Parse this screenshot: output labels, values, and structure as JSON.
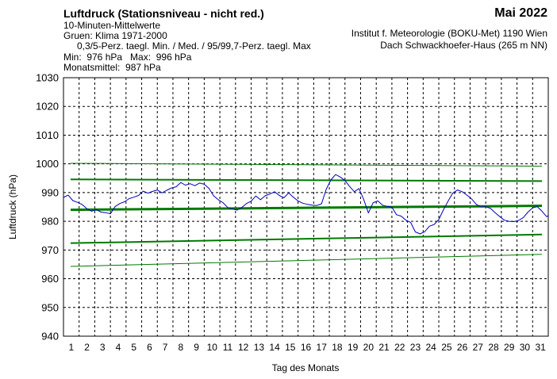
{
  "header": {
    "title": "Luftdruck (Stationsniveau - nicht red.)",
    "subtitle": "10-Minuten-Mittelwerte",
    "clim_line": "Gruen: Klima 1971-2000",
    "perc_line": "0,3/5-Perz. taegl. Min. / Med. / 95/99,7-Perz. taegl. Max",
    "stats_line": "Min:  976 hPa   Max:  996 hPa",
    "mean_line": "Monatsmittel:  987 hPa",
    "month": "Mai 2022",
    "institute": "Institut f. Meteorologie (BOKU-Met) 1190 Wien",
    "location": "Dach Schwackhoefer-Haus (265 m NN)"
  },
  "chart_data": {
    "type": "line",
    "ylabel": "Luftdruck (hPa)",
    "xlabel": "Tag des Monats",
    "ylim": [
      940,
      1030
    ],
    "xlim": [
      1,
      32
    ],
    "yticks": [
      940,
      950,
      960,
      970,
      980,
      990,
      1000,
      1010,
      1020,
      1030
    ],
    "xticks": [
      1,
      2,
      3,
      4,
      5,
      6,
      7,
      8,
      9,
      10,
      11,
      12,
      13,
      14,
      15,
      16,
      17,
      18,
      19,
      20,
      21,
      22,
      23,
      24,
      25,
      26,
      27,
      28,
      29,
      30,
      31
    ],
    "grid": true,
    "colors": {
      "measured": "#0000c0",
      "climate": "#007a00",
      "axes": "#000000"
    },
    "climate_series": [
      {
        "role": "p0.3-min",
        "x": [
          1,
          32
        ],
        "y": [
          964.3,
          968.5
        ],
        "width": 1
      },
      {
        "role": "p5-min",
        "x": [
          1,
          32
        ],
        "y": [
          972.4,
          975.4
        ],
        "width": 2
      },
      {
        "role": "median",
        "x": [
          1,
          32
        ],
        "y": [
          984.0,
          985.4
        ],
        "width": 3
      },
      {
        "role": "p95-max",
        "x": [
          1,
          32
        ],
        "y": [
          994.6,
          994.0
        ],
        "width": 2
      },
      {
        "role": "p99.7-max",
        "x": [
          1,
          32
        ],
        "y": [
          1000.2,
          999.2
        ],
        "width": 1
      }
    ],
    "measured": {
      "x": [
        1.0,
        1.3,
        1.6,
        1.9,
        2.2,
        2.5,
        2.8,
        3.1,
        3.4,
        3.7,
        4.0,
        4.3,
        4.6,
        4.9,
        5.2,
        5.5,
        5.8,
        6.1,
        6.4,
        6.7,
        7.0,
        7.3,
        7.6,
        7.9,
        8.2,
        8.5,
        8.8,
        9.1,
        9.4,
        9.7,
        10.0,
        10.3,
        10.6,
        10.9,
        11.2,
        11.5,
        11.8,
        12.1,
        12.4,
        12.7,
        13.0,
        13.3,
        13.6,
        13.9,
        14.2,
        14.5,
        14.8,
        15.1,
        15.4,
        15.7,
        16.0,
        16.3,
        16.6,
        16.9,
        17.2,
        17.5,
        17.8,
        18.1,
        18.4,
        18.7,
        19.0,
        19.3,
        19.6,
        19.9,
        20.2,
        20.5,
        20.8,
        21.1,
        21.4,
        21.7,
        22.0,
        22.3,
        22.6,
        22.9,
        23.2,
        23.5,
        23.8,
        24.1,
        24.4,
        24.7,
        25.0,
        25.3,
        25.6,
        25.9,
        26.2,
        26.5,
        26.8,
        27.1,
        27.4,
        27.7,
        28.0,
        28.3,
        28.6,
        28.9,
        29.2,
        29.5,
        29.8,
        30.1,
        30.4,
        30.7,
        31.0,
        31.3,
        31.6,
        31.9,
        32.0
      ],
      "y": [
        988.3,
        989.1,
        987.2,
        986.6,
        985.8,
        984.4,
        983.5,
        984.1,
        983.2,
        983.0,
        982.6,
        985.1,
        986.2,
        986.8,
        987.9,
        988.4,
        989.0,
        990.5,
        989.8,
        990.4,
        990.9,
        989.9,
        990.8,
        991.6,
        992.0,
        993.5,
        992.6,
        993.1,
        992.4,
        993.3,
        992.9,
        991.5,
        988.9,
        987.5,
        986.5,
        984.8,
        984.3,
        983.9,
        984.8,
        986.2,
        987.0,
        988.8,
        987.5,
        988.9,
        989.5,
        990.3,
        989.0,
        988.2,
        989.9,
        988.4,
        987.1,
        986.3,
        985.9,
        985.6,
        985.5,
        986.1,
        991.1,
        994.4,
        996.3,
        995.4,
        994.2,
        992.1,
        990.3,
        991.4,
        987.6,
        982.9,
        986.5,
        987.1,
        985.6,
        985.2,
        984.9,
        982.3,
        981.8,
        980.4,
        979.6,
        976.3,
        975.6,
        976.4,
        978.3,
        978.9,
        980.6,
        984.0,
        987.1,
        989.9,
        990.9,
        990.3,
        989.1,
        987.8,
        985.9,
        985.0,
        985.1,
        984.5,
        983.0,
        981.6,
        980.4,
        980.0,
        979.9,
        980.3,
        981.3,
        983.2,
        984.7,
        985.1,
        983.5,
        981.6,
        982.0
      ]
    }
  }
}
